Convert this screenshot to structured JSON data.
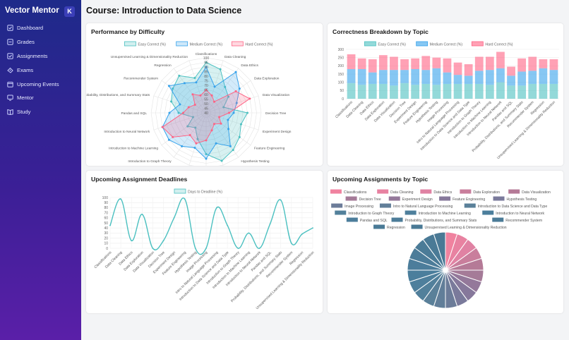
{
  "sidebar": {
    "brand": "Vector Mentor",
    "badge": "K",
    "items": [
      {
        "label": "Dashboard",
        "icon": "dashboard-icon"
      },
      {
        "label": "Grades",
        "icon": "grades-icon"
      },
      {
        "label": "Assignments",
        "icon": "assignments-icon"
      },
      {
        "label": "Exams",
        "icon": "exams-icon"
      },
      {
        "label": "Upcoming Events",
        "icon": "events-icon"
      },
      {
        "label": "Mentor",
        "icon": "mentor-icon"
      },
      {
        "label": "Study",
        "icon": "study-icon"
      }
    ]
  },
  "page": {
    "title": "Course: Introduction to Data Science"
  },
  "cards": {
    "radar_title": "Performance by Difficulty",
    "stacked_title": "Correctness Breakdown by Topic",
    "line_title": "Upcoming Assignment Deadlines",
    "pie_title": "Upcoming Assignments by Topic"
  },
  "colors": {
    "easy": "#4bc0c0",
    "medium": "#36a2eb",
    "hard": "#ff6384"
  },
  "chart_data": [
    {
      "type": "radar",
      "title": "Performance by Difficulty",
      "categories": [
        "Classifications",
        "Data Cleaning",
        "Data Ethics",
        "Data Exploration",
        "Data Visualization",
        "Decision Tree",
        "Experiment Design",
        "Feature Engineering",
        "Hypothesis Testing",
        "Image Processing",
        "Intro to Natural Language Processing",
        "Introduction to Data Science and Data Type",
        "Introduction to Graph Theory",
        "Introduction to Machine Learning",
        "Introduction to Neural Network",
        "Pandas and SQL",
        "Probability, Distributions, and Summary Stats",
        "Recommender System",
        "Regression",
        "Unsupervised Learning & Dimensionality Reduction"
      ],
      "ticks": [
        40,
        45,
        50,
        55,
        60,
        65,
        70,
        75,
        80,
        85,
        90,
        95,
        100
      ],
      "rmin": 40,
      "rmax": 100,
      "series": [
        {
          "name": "Easy Correct (%)",
          "values": [
            95,
            90,
            75,
            70,
            60,
            85,
            80,
            85,
            90,
            95,
            85,
            70,
            60,
            65,
            55,
            70,
            80,
            85,
            90,
            80
          ]
        },
        {
          "name": "Medium Correct (%)",
          "values": [
            90,
            70,
            95,
            85,
            75,
            70,
            65,
            70,
            85,
            75,
            90,
            80,
            85,
            90,
            90,
            80,
            70,
            90,
            80,
            75
          ]
        },
        {
          "name": "Hard Correct (%)",
          "values": [
            65,
            60,
            55,
            80,
            90,
            65,
            55,
            60,
            55,
            60,
            70,
            75,
            70,
            85,
            90,
            65,
            60,
            55,
            65,
            60
          ]
        }
      ]
    },
    {
      "type": "bar",
      "stacked": true,
      "title": "Correctness Breakdown by Topic",
      "categories": [
        "Classifications",
        "Data Cleaning",
        "Data Ethics",
        "Data Exploration",
        "Data Visualization",
        "Decision Tree",
        "Experiment Design",
        "Feature Engineering",
        "Hypothesis Testing",
        "Image Processing",
        "Intro to Natural Language Processing",
        "Introduction to Data Science and Data Type",
        "Introduction to Graph Theory",
        "Introduction to Machine Learning",
        "Introduction to Neural Network",
        "Pandas and SQL",
        "Probability, Distributions, and Summary Stats",
        "Recommender System",
        "Regression",
        "Unsupervised Learning & Dimensionality Reduction"
      ],
      "ylim": [
        0,
        300
      ],
      "yticks": [
        0,
        50,
        100,
        150,
        200,
        250,
        300
      ],
      "series": [
        {
          "name": "Easy Correct (%)",
          "values": [
            95,
            85,
            90,
            90,
            80,
            95,
            85,
            90,
            85,
            90,
            90,
            90,
            90,
            85,
            100,
            80,
            80,
            90,
            90,
            90
          ]
        },
        {
          "name": "Medium Correct (%)",
          "values": [
            85,
            95,
            70,
            85,
            95,
            80,
            95,
            85,
            100,
            70,
            55,
            50,
            80,
            90,
            85,
            60,
            85,
            80,
            95,
            85
          ]
        },
        {
          "name": "Hard Correct (%)",
          "values": [
            90,
            65,
            80,
            90,
            80,
            65,
            65,
            85,
            65,
            85,
            75,
            70,
            85,
            80,
            100,
            55,
            80,
            85,
            55,
            65
          ]
        }
      ]
    },
    {
      "type": "line",
      "title": "Upcoming Assignment Deadlines",
      "categories": [
        "Classifications",
        "Data Cleaning",
        "Data Ethics",
        "Data Exploration",
        "Data Visualization",
        "Decision Tree",
        "Experiment Design",
        "Feature Engineering",
        "Hypothesis Testing",
        "Image Processing",
        "Intro to Natural Language Processing",
        "Introduction to Data Science and Data Type",
        "Introduction to Graph Theory",
        "Introduction to Machine Learning",
        "Introduction to Neural Network",
        "Pandas and SQL",
        "Probability, Distributions, and Summary Stats",
        "Recommender System",
        "Regression",
        "Unsupervised Learning & Dimensionality Reduction"
      ],
      "ylim": [
        0,
        100
      ],
      "yticks": [
        0,
        10,
        20,
        30,
        40,
        50,
        60,
        70,
        80,
        90,
        100
      ],
      "series": [
        {
          "name": "Days to Deadline (%)",
          "values": [
            45,
            97,
            15,
            67,
            0,
            15,
            60,
            97,
            0,
            0,
            80,
            45,
            0,
            30,
            0,
            48,
            95,
            10,
            28,
            40
          ]
        }
      ]
    },
    {
      "type": "pie",
      "title": "Upcoming Assignments by Topic",
      "categories": [
        "Classifications",
        "Data Cleaning",
        "Data Ethics",
        "Data Exploration",
        "Data Visualization",
        "Decision Tree",
        "Experiment Design",
        "Feature Engineering",
        "Hypothesis Testing",
        "Image Processing",
        "Intro to Natural Language Processing",
        "Introduction to Data Science and Data Type",
        "Introduction to Graph Theory",
        "Introduction to Machine Learning",
        "Introduction to Neural Network",
        "Pandas and SQL",
        "Probability, Distributions, and Summary Stats",
        "Recommender System",
        "Regression",
        "Unsupervised Learning & Dimensionality Reduction"
      ],
      "values": [
        1,
        1,
        1,
        1,
        1,
        1,
        1,
        1,
        1,
        1,
        1,
        1,
        1,
        1,
        1,
        1,
        1,
        1,
        1,
        1
      ],
      "colors": [
        "#f0829f",
        "#e882a1",
        "#e082a3",
        "#c97e9c",
        "#b57a97",
        "#a57b98",
        "#94789a",
        "#86789b",
        "#7a7a9b",
        "#6c7c99",
        "#617e99",
        "#5a8099",
        "#52809b",
        "#4e7f9c",
        "#4b7e9c",
        "#4c7d9b",
        "#4c7c99",
        "#4b7b97",
        "#4a7a96",
        "#4a7995"
      ]
    }
  ]
}
